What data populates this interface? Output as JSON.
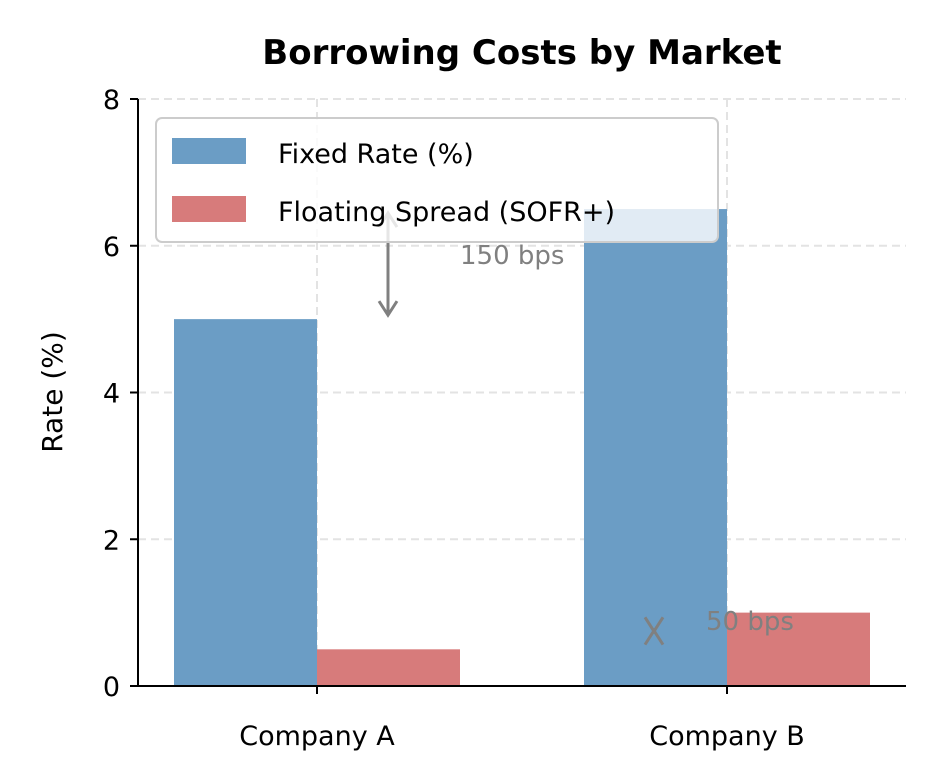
{
  "chart_data": {
    "type": "bar",
    "title": "Borrowing Costs by Market",
    "xlabel": "",
    "ylabel": "Rate (%)",
    "ylim": [
      0,
      8
    ],
    "yticks": [
      "0",
      "2",
      "4",
      "6",
      "8"
    ],
    "grid": true,
    "legend_position": "top-left",
    "categories": [
      "Company A",
      "Company B"
    ],
    "series": [
      {
        "name": "Fixed Rate (%)",
        "values": [
          5.0,
          6.5
        ],
        "color": "#6b9dc5"
      },
      {
        "name": "Floating Spread (SOFR+)",
        "values": [
          0.5,
          1.0
        ],
        "color": "#d77b7b"
      }
    ],
    "annotations": [
      {
        "text": "150 bps",
        "from": 6.5,
        "to": 5.0
      },
      {
        "text": "50 bps",
        "from": 1.0,
        "to": 0.5
      }
    ]
  }
}
